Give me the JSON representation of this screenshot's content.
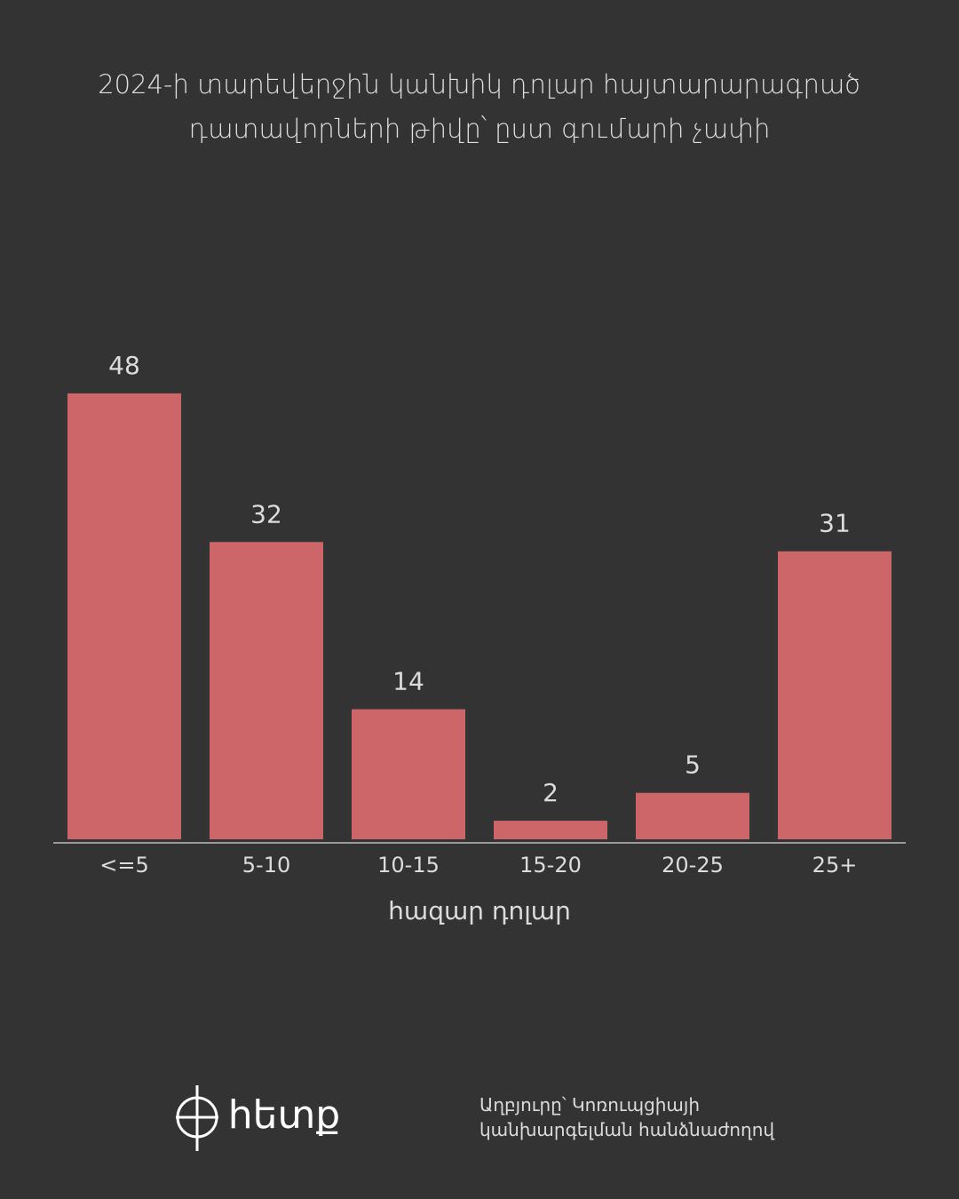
{
  "chart_data": {
    "type": "bar",
    "title": "2024-ի տարեվերջին կանխիկ դոլար հայտարարագրած դատավորների թիվը՝ ըստ գումարի չափի",
    "x_label": "հազար դոլար",
    "categories": [
      "<=5",
      "5-10",
      "10-15",
      "15-20",
      "20-25",
      "25+"
    ],
    "values": [
      48,
      32,
      14,
      2,
      5,
      31
    ],
    "color": "#cc6669",
    "ylim": [
      0,
      50
    ],
    "logo": "հետք",
    "source": [
      "Աղբյուրը՝ Կոռուպցիայի",
      "կանխարգելման հանձնաժողով"
    ]
  }
}
